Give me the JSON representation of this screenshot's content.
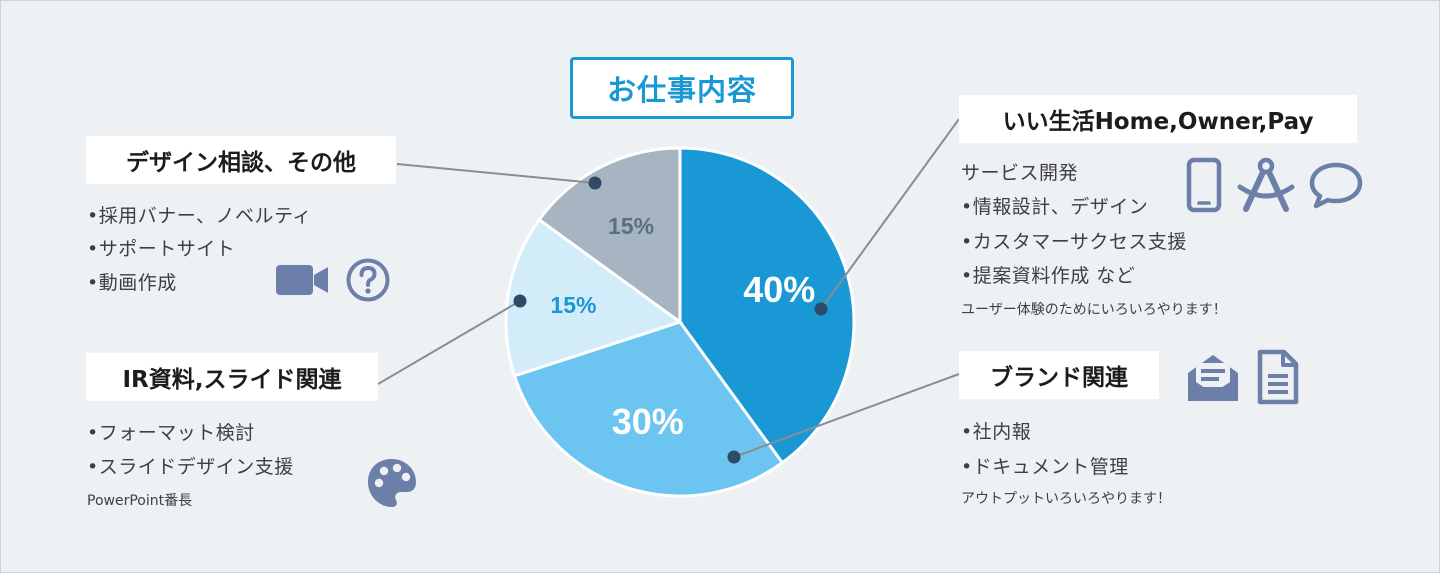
{
  "colors": {
    "background": "#eef1f4",
    "accent": "#1a98d5",
    "icon": "#6b7fa8",
    "leader": "#8a8d91",
    "dot": "#2f4a66"
  },
  "title": "お仕事内容",
  "chart_data": {
    "type": "pie",
    "slices": [
      {
        "label": "40%",
        "value": 40,
        "color": "#1a98d5",
        "label_color": "#ffffff"
      },
      {
        "label": "30%",
        "value": 30,
        "color": "#6cc4f0",
        "label_color": "#ffffff"
      },
      {
        "label": "15%",
        "value": 15,
        "color": "#d2ecfa",
        "label_color": "#1a98d5"
      },
      {
        "label": "15%",
        "value": 15,
        "color": "#a7b4c2",
        "label_color": "#5a6e84"
      }
    ]
  },
  "sections": {
    "design": {
      "heading": "デザイン相談、その他",
      "items": [
        "•採用バナー、ノベルティ",
        "•サポートサイト",
        "•動画作成"
      ],
      "icons": [
        "video-camera-icon",
        "question-circle-icon"
      ]
    },
    "ir": {
      "heading": "IR資料,スライド関連",
      "items": [
        "•フォーマット検討",
        "•スライドデザイン支援"
      ],
      "note": "PowerPoint番長",
      "icons": [
        "palette-icon"
      ]
    },
    "iiseikatsu": {
      "heading": "いい生活Home,Owner,Pay",
      "items": [
        "サービス開発",
        "•情報設計、デザイン",
        "•カスタマーサクセス支援",
        "•提案資料作成 など"
      ],
      "note": "ユーザー体験のためにいろいろやります！",
      "icons": [
        "smartphone-icon",
        "compass-drafting-icon",
        "speech-bubble-icon"
      ]
    },
    "brand": {
      "heading": "ブランド関連",
      "items": [
        "•社内報",
        "•ドキュメント管理"
      ],
      "note": "アウトプットいろいろやります！",
      "icons": [
        "open-envelope-icon",
        "document-icon"
      ]
    }
  }
}
